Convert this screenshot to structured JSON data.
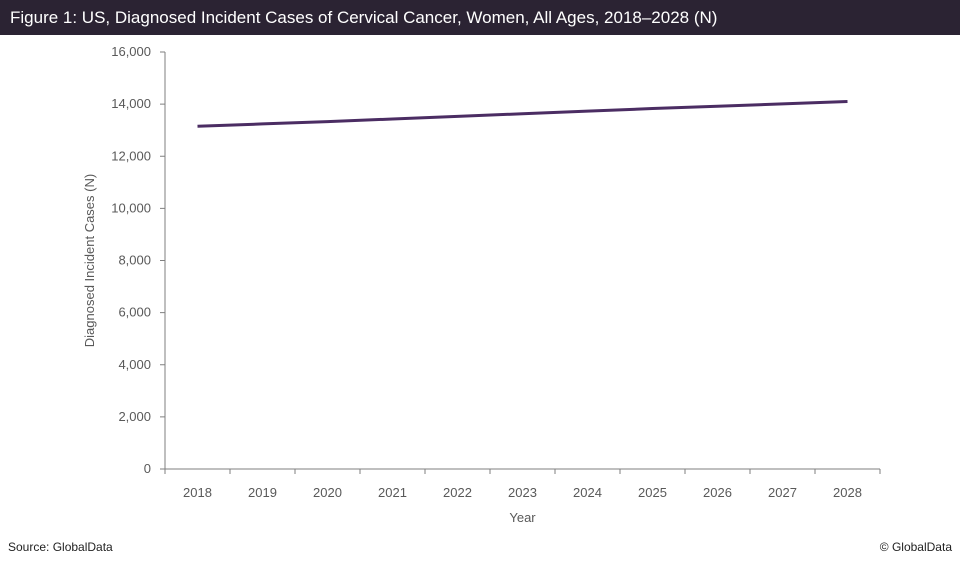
{
  "header": {
    "title": "Figure 1: US, Diagnosed Incident Cases of Cervical Cancer, Women, All Ages, 2018–2028 (N)"
  },
  "footer": {
    "source": "Source: GlobalData",
    "copyright": "© GlobalData"
  },
  "colors": {
    "title_bar": "#2b2333",
    "line": "#4b2d63",
    "axis": "#7f7f7f",
    "tick_text": "#595959"
  },
  "chart_data": {
    "type": "line",
    "title": "Figure 1: US, Diagnosed Incident Cases of Cervical Cancer, Women, All Ages, 2018–2028 (N)",
    "xlabel": "Year",
    "ylabel": "Diagnosed Incident Cases (N)",
    "categories": [
      "2018",
      "2019",
      "2020",
      "2021",
      "2022",
      "2023",
      "2024",
      "2025",
      "2026",
      "2027",
      "2028"
    ],
    "series": [
      {
        "values": [
          13150,
          13240,
          13330,
          13430,
          13530,
          13630,
          13730,
          13830,
          13920,
          14010,
          14100
        ]
      }
    ],
    "yticks": [
      "0",
      "2,000",
      "4,000",
      "6,000",
      "8,000",
      "10,000",
      "12,000",
      "14,000",
      "16,000"
    ],
    "ylim": [
      0,
      16000
    ],
    "grid": false,
    "legend": "none"
  }
}
